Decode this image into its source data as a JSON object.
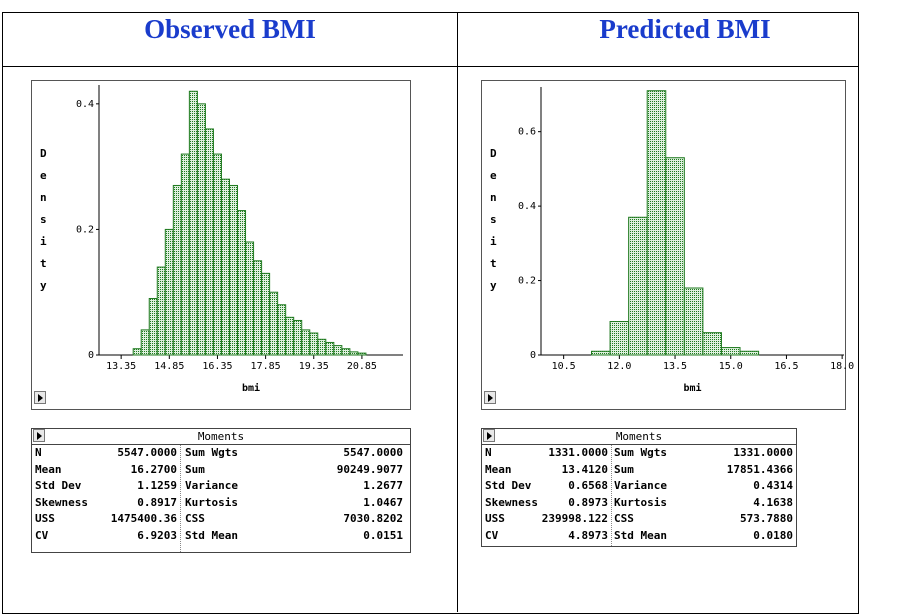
{
  "headers": [
    "Observed BMI",
    "Predicted BMI"
  ],
  "chart_data": [
    {
      "type": "histogram",
      "y_label": "Density",
      "x_label": "bmi",
      "color": "#1f7a1f",
      "bins": [
        13.725,
        13.975,
        14.225,
        14.475,
        14.725,
        14.975,
        15.225,
        15.475,
        15.725,
        15.975,
        16.225,
        16.475,
        16.725,
        16.975,
        17.225,
        17.475,
        17.725,
        17.975,
        18.225,
        18.475,
        18.725,
        18.975,
        19.225,
        19.475,
        19.725,
        19.975,
        20.225,
        20.475,
        20.725,
        20.975
      ],
      "values": [
        0.01,
        0.04,
        0.09,
        0.14,
        0.2,
        0.27,
        0.32,
        0.42,
        0.4,
        0.36,
        0.32,
        0.28,
        0.27,
        0.23,
        0.18,
        0.15,
        0.13,
        0.1,
        0.08,
        0.06,
        0.055,
        0.04,
        0.035,
        0.025,
        0.02,
        0.015,
        0.01,
        0.005,
        0.003
      ],
      "xlim": [
        12.66,
        22.13
      ],
      "ylim": [
        0,
        0.43
      ],
      "xticks": [
        13.35,
        14.85,
        16.35,
        17.85,
        19.35,
        20.85
      ],
      "yticks": [
        0,
        0.2,
        0.4
      ]
    },
    {
      "type": "histogram",
      "y_label": "Density",
      "x_label": "bmi",
      "color": "#1f7a1f",
      "bins": [
        11.25,
        11.75,
        12.25,
        12.75,
        13.25,
        13.75,
        14.25,
        14.75,
        15.25,
        15.75
      ],
      "values": [
        0.01,
        0.09,
        0.37,
        0.71,
        0.53,
        0.18,
        0.06,
        0.02,
        0.01
      ],
      "xlim": [
        9.89,
        18.05
      ],
      "ylim": [
        0,
        0.72
      ],
      "xticks": [
        10.5,
        {
          "value": 12,
          "label": "12.0"
        },
        13.5,
        {
          "value": 15,
          "label": "15.0"
        },
        16.5,
        {
          "value": 18,
          "label": "18.0"
        }
      ],
      "yticks": [
        0,
        0.2,
        0.4,
        0.6
      ]
    }
  ],
  "moments": [
    {
      "title": "Moments",
      "rows": [
        [
          "N",
          "5547.0000",
          "Sum Wgts",
          "5547.0000"
        ],
        [
          "Mean",
          "16.2700",
          "Sum",
          "90249.9077"
        ],
        [
          "Std Dev",
          "1.1259",
          "Variance",
          "1.2677"
        ],
        [
          "Skewness",
          "0.8917",
          "Kurtosis",
          "1.0467"
        ],
        [
          "USS",
          "1475400.36",
          "CSS",
          "7030.8202"
        ],
        [
          "CV",
          "6.9203",
          "Std Mean",
          "0.0151"
        ]
      ]
    },
    {
      "title": "Moments",
      "rows": [
        [
          "N",
          "1331.0000",
          "Sum Wgts",
          "1331.0000"
        ],
        [
          "Mean",
          "13.4120",
          "Sum",
          "17851.4366"
        ],
        [
          "Std Dev",
          "0.6568",
          "Variance",
          "0.4314"
        ],
        [
          "Skewness",
          "0.8973",
          "Kurtosis",
          "4.1638"
        ],
        [
          "USS",
          "239998.122",
          "CSS",
          "573.7880"
        ],
        [
          "CV",
          "4.8973",
          "Std Mean",
          "0.0180"
        ]
      ]
    }
  ]
}
